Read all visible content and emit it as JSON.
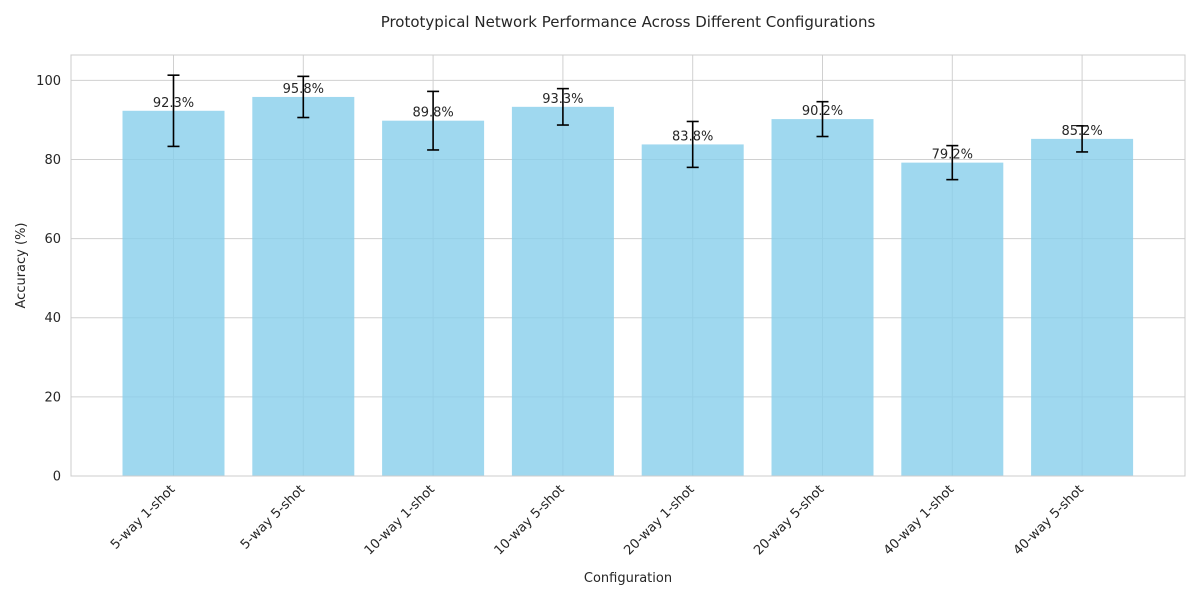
{
  "chart_data": {
    "type": "bar",
    "title": "Prototypical Network Performance Across Different Configurations",
    "xlabel": "Configuration",
    "ylabel": "Accuracy (%)",
    "categories": [
      "5-way 1-shot",
      "5-way 5-shot",
      "10-way 1-shot",
      "10-way 5-shot",
      "20-way 1-shot",
      "20-way 5-shot",
      "40-way 1-shot",
      "40-way 5-shot"
    ],
    "values": [
      92.3,
      95.8,
      89.8,
      93.3,
      83.8,
      90.2,
      79.2,
      85.2
    ],
    "errors": [
      9.0,
      5.2,
      7.4,
      4.6,
      5.8,
      4.4,
      4.3,
      3.3
    ],
    "value_labels": [
      "92.3%",
      "95.8%",
      "89.8%",
      "93.3%",
      "83.8%",
      "90.2%",
      "79.2%",
      "85.2%"
    ],
    "yticks": [
      0,
      20,
      40,
      60,
      80,
      100
    ],
    "ylim": [
      0,
      106.4
    ],
    "grid": true,
    "colors": {
      "bar": "#87ceeb",
      "bar_opacity": 0.8,
      "error": "#000000"
    }
  }
}
